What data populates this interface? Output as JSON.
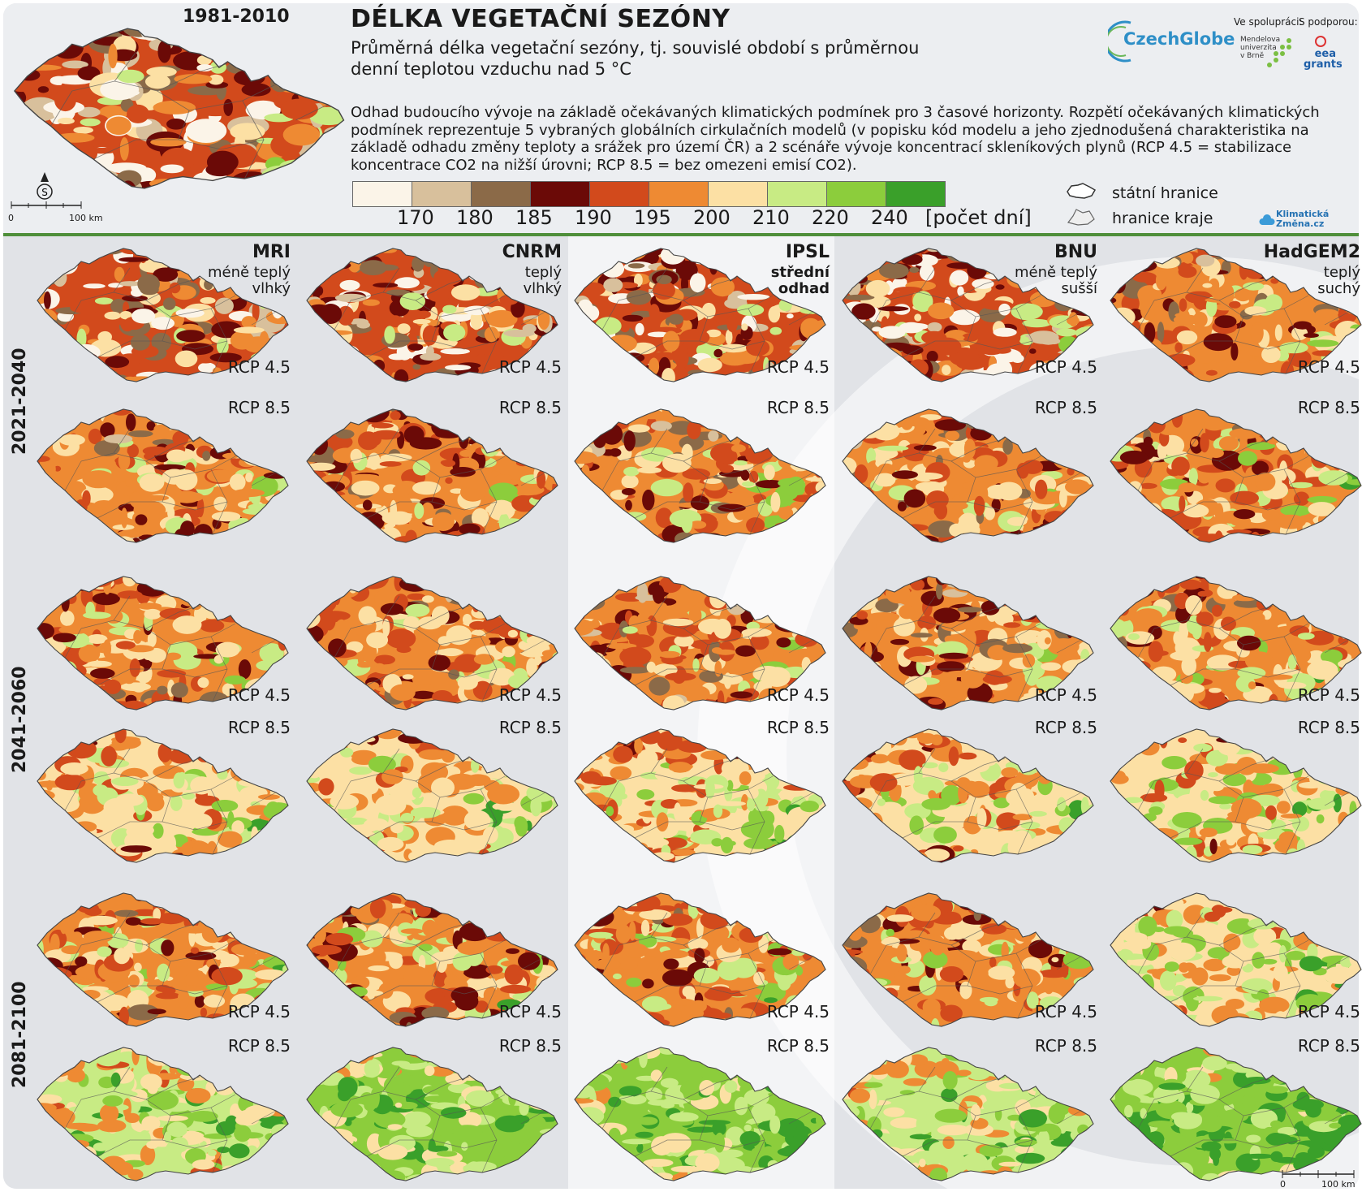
{
  "header": {
    "title": "DÉLKA VEGETAČNÍ SEZÓNY",
    "subtitle": "Průměrná délka vegetační sezóny, tj. souvislé období s průměrnou denní teplotou vzduchu nad 5 °C",
    "description": "Odhad budoucího vývoje na základě očekávaných klimatických podmínek pro 3 časové horizonty. Rozpětí očekávaných klimatických podmínek reprezentuje 5 vybraných globálních cirkulačních modelů (v popisku kód modelu a jeho zjednodušená charakteristika na základě odhadu změny teploty a srážek pro území ČR) a 2 scénáře vývoje koncentrací skleníkových plynů (RCP 4.5 = stabilizace koncentrace CO2 na nižší úrovni; RCP 8.5 = bez omezeni emisí CO2).",
    "reference_period": "1981-2010",
    "scale_zero": "0",
    "scale_label": "100 km"
  },
  "legend": {
    "colors": [
      "#fbf4e8",
      "#d8c09c",
      "#8b6a48",
      "#6b0a07",
      "#d24a1c",
      "#ee8a33",
      "#fce0a4",
      "#c8eb84",
      "#8ccd3c",
      "#3aa02a"
    ],
    "ticks": [
      "170",
      "180",
      "185",
      "190",
      "195",
      "200",
      "210",
      "220",
      "240"
    ],
    "unit": "[počet dní]",
    "state_border": "státní hranice",
    "region_border": "hranice kraje"
  },
  "logos": {
    "czechglobe": "CzechGlobe",
    "cooperation": "Ve spolupráci:",
    "support": "S podporou:",
    "mendel": "Mendelova univerzita v Brně",
    "eea": "eea grants",
    "klimaticka": "Klimatická Změna.cz"
  },
  "models": [
    {
      "name": "MRI",
      "line1": "méně teplý",
      "line2": "vlhký",
      "bold": false
    },
    {
      "name": "CNRM",
      "line1": "teplý",
      "line2": "vlhký",
      "bold": false
    },
    {
      "name": "IPSL",
      "line1": "střední",
      "line2": "odhad",
      "bold": true
    },
    {
      "name": "BNU",
      "line1": "méně teplý",
      "line2": "sušší",
      "bold": false
    },
    {
      "name": "HadGEM2",
      "line1": "teplý",
      "line2": "suchý",
      "bold": false
    }
  ],
  "periods": [
    "2021-2040",
    "2041-2060",
    "2081-2100"
  ],
  "scenarios": [
    "RCP 4.5",
    "RCP 8.5"
  ],
  "bottom_scale": {
    "zero": "0",
    "label": "100 km"
  }
}
